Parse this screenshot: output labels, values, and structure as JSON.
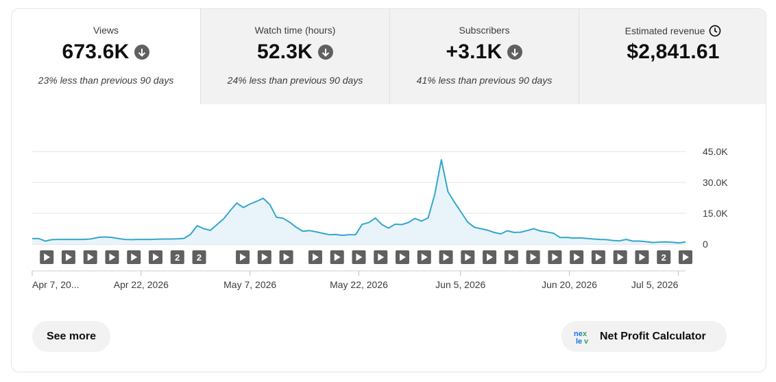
{
  "metrics": [
    {
      "title": "Views",
      "value": "673.6K",
      "subtitle": "23% less than previous 90 days",
      "trend_icon": "arrow-down-circle-icon",
      "active": true
    },
    {
      "title": "Watch time (hours)",
      "value": "52.3K",
      "subtitle": "24% less than previous 90 days",
      "trend_icon": "arrow-down-circle-icon",
      "active": false
    },
    {
      "title": "Subscribers",
      "value": "+3.1K",
      "subtitle": "41% less than previous 90 days",
      "trend_icon": "arrow-down-circle-icon",
      "active": false
    },
    {
      "title": "Estimated revenue",
      "value": "$2,841.61",
      "subtitle": "",
      "title_icon": "clock-icon",
      "active": false
    }
  ],
  "chart_data": {
    "type": "area",
    "ylim": [
      0,
      45000
    ],
    "yticks": [
      {
        "value": 45000,
        "label": "45.0K"
      },
      {
        "value": 30000,
        "label": "30.0K"
      },
      {
        "value": 15000,
        "label": "15.0K"
      },
      {
        "value": 0,
        "label": "0"
      }
    ],
    "x_start": "2026-04-07",
    "x_end": "2026-07-06",
    "xticks": [
      {
        "date": "2026-04-07",
        "label": "Apr 7, 20..."
      },
      {
        "date": "2026-04-22",
        "label": "Apr 22, 2026"
      },
      {
        "date": "2026-05-07",
        "label": "May 7, 2026"
      },
      {
        "date": "2026-05-22",
        "label": "May 22, 2026"
      },
      {
        "date": "2026-06-05",
        "label": "Jun 5, 2026"
      },
      {
        "date": "2026-06-20",
        "label": "Jun 20, 2026"
      },
      {
        "date": "2026-07-05",
        "label": "Jul 5, 2026"
      }
    ],
    "values": [
      2700,
      2700,
      1500,
      2200,
      2300,
      2300,
      2300,
      2300,
      2300,
      2600,
      3300,
      3500,
      3300,
      2800,
      2300,
      2200,
      2300,
      2300,
      2300,
      2400,
      2500,
      2500,
      2600,
      2800,
      4800,
      9000,
      7500,
      6700,
      9500,
      12300,
      16300,
      20000,
      17800,
      19500,
      20800,
      22300,
      19300,
      13100,
      12600,
      10700,
      8200,
      6300,
      6600,
      6000,
      5300,
      4600,
      4700,
      4300,
      4600,
      4600,
      9600,
      10500,
      12700,
      9500,
      7800,
      9700,
      9500,
      10500,
      12500,
      11200,
      12800,
      24200,
      41000,
      25500,
      20300,
      15500,
      10700,
      8200,
      7500,
      6800,
      5700,
      5000,
      6500,
      5700,
      5800,
      6600,
      7500,
      6400,
      5900,
      5300,
      3200,
      3300,
      2900,
      3100,
      2800,
      2500,
      2300,
      2200,
      1800,
      1600,
      2300,
      1500,
      1500,
      1200,
      800,
      1000,
      1100,
      900,
      600,
      1100
    ],
    "video_markers": [
      {
        "date": "2026-04-09",
        "kind": "video",
        "label": ""
      },
      {
        "date": "2026-04-12",
        "kind": "video",
        "label": ""
      },
      {
        "date": "2026-04-15",
        "kind": "video",
        "label": ""
      },
      {
        "date": "2026-04-18",
        "kind": "video",
        "label": ""
      },
      {
        "date": "2026-04-21",
        "kind": "video",
        "label": ""
      },
      {
        "date": "2026-04-24",
        "kind": "video",
        "label": ""
      },
      {
        "date": "2026-04-27",
        "kind": "count",
        "label": "2"
      },
      {
        "date": "2026-04-30",
        "kind": "count",
        "label": "2"
      },
      {
        "date": "2026-05-06",
        "kind": "video",
        "label": ""
      },
      {
        "date": "2026-05-09",
        "kind": "video",
        "label": ""
      },
      {
        "date": "2026-05-12",
        "kind": "video",
        "label": ""
      },
      {
        "date": "2026-05-16",
        "kind": "video",
        "label": ""
      },
      {
        "date": "2026-05-19",
        "kind": "video",
        "label": ""
      },
      {
        "date": "2026-05-22",
        "kind": "video",
        "label": ""
      },
      {
        "date": "2026-05-25",
        "kind": "video",
        "label": ""
      },
      {
        "date": "2026-05-28",
        "kind": "video",
        "label": ""
      },
      {
        "date": "2026-05-31",
        "kind": "video",
        "label": ""
      },
      {
        "date": "2026-06-03",
        "kind": "video",
        "label": ""
      },
      {
        "date": "2026-06-06",
        "kind": "video",
        "label": ""
      },
      {
        "date": "2026-06-09",
        "kind": "video",
        "label": ""
      },
      {
        "date": "2026-06-12",
        "kind": "video",
        "label": ""
      },
      {
        "date": "2026-06-15",
        "kind": "video",
        "label": ""
      },
      {
        "date": "2026-06-18",
        "kind": "video",
        "label": ""
      },
      {
        "date": "2026-06-21",
        "kind": "video",
        "label": ""
      },
      {
        "date": "2026-06-24",
        "kind": "video",
        "label": ""
      },
      {
        "date": "2026-06-27",
        "kind": "video",
        "label": ""
      },
      {
        "date": "2026-06-30",
        "kind": "video",
        "label": ""
      },
      {
        "date": "2026-07-03",
        "kind": "count",
        "label": "2"
      },
      {
        "date": "2026-07-06",
        "kind": "video",
        "label": ""
      }
    ],
    "colors": {
      "line": "#33a6cc",
      "fill": "#e8f4fa",
      "grid": "#e5e5e5",
      "marker": "#606060"
    }
  },
  "buttons": {
    "see_more": "See more",
    "net_profit": "Net Profit Calculator",
    "net_profit_logo": "nexlev"
  }
}
